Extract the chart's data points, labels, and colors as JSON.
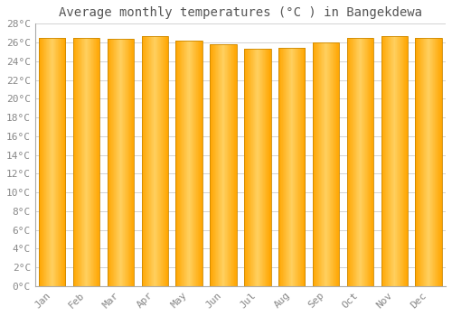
{
  "title": "Average monthly temperatures (°C ) in Bangekdewa",
  "months": [
    "Jan",
    "Feb",
    "Mar",
    "Apr",
    "May",
    "Jun",
    "Jul",
    "Aug",
    "Sep",
    "Oct",
    "Nov",
    "Dec"
  ],
  "values": [
    26.5,
    26.5,
    26.4,
    26.7,
    26.2,
    25.8,
    25.3,
    25.4,
    26.0,
    26.5,
    26.7,
    26.5
  ],
  "bar_color": "#FFA500",
  "bar_color_light": "#FFD060",
  "bar_edge_color": "#CC8800",
  "background_color": "#FFFFFF",
  "grid_color": "#CCCCCC",
  "ylim": [
    0,
    28
  ],
  "yticks": [
    0,
    2,
    4,
    6,
    8,
    10,
    12,
    14,
    16,
    18,
    20,
    22,
    24,
    26,
    28
  ],
  "title_fontsize": 10,
  "tick_fontsize": 8,
  "title_color": "#555555",
  "tick_color": "#888888",
  "figsize": [
    5.0,
    3.5
  ],
  "dpi": 100
}
